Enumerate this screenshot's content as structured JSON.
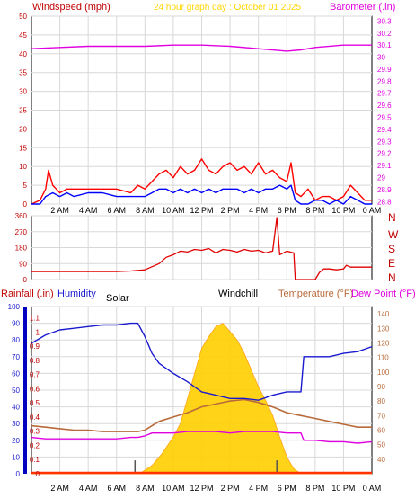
{
  "colors": {
    "background": "#ffffff",
    "plot_bg": "#ffffff",
    "frame": "#000000",
    "grid": "#d8d8d8",
    "wind_gust": "#ff0000",
    "wind_avg": "#0000ff",
    "barometer": "#e000e0",
    "direction": "#e00000",
    "humidity": "#1a1ad0",
    "temperature": "#b86a3a",
    "dew_point": "#e000e0",
    "solar": "#ffd000",
    "solar_edge": "#ff9900",
    "rain_bar": "#0000c0",
    "title": "#ffd400",
    "rain_bottom": "#ff3300"
  },
  "chart_data": [
    {
      "type": "line",
      "panel": "wind_barometer",
      "title": "24 hour graph day : October 01 2025",
      "left_label": "Windspeed (mph)",
      "right_label": "Barometer (.in)",
      "x_ticks": [
        "2 AM",
        "4 AM",
        "6 AM",
        "8 AM",
        "10 AM",
        "12 PM",
        "2 PM",
        "4 PM",
        "6 PM",
        "8 PM",
        "10 PM",
        "0 AM"
      ],
      "left_ticks": [
        "0",
        "5",
        "10",
        "15",
        "20",
        "25",
        "30",
        "35",
        "40",
        "45",
        "50"
      ],
      "ylim_left": [
        0,
        50
      ],
      "right_ticks": [
        "28.8",
        "28.9",
        "29",
        "29.1",
        "29.2",
        "29.3",
        "29.4",
        "29.5",
        "29.6",
        "29.7",
        "29.8",
        "29.9",
        "30",
        "30.1",
        "30.2",
        "30.3"
      ],
      "ylim_right": [
        28.78,
        30.34
      ],
      "series": [
        {
          "key": "gust",
          "x": [
            0,
            0.6,
            1,
            1.2,
            1.5,
            2,
            2.5,
            3,
            4,
            5,
            6,
            7,
            7.5,
            8,
            8.5,
            9,
            9.5,
            10,
            10.5,
            11,
            11.5,
            12,
            12.5,
            13,
            13.5,
            14,
            14.5,
            15,
            15.5,
            16,
            16.5,
            17,
            17.5,
            18,
            18.3,
            18.6,
            19,
            19.5,
            20,
            20.5,
            21,
            21.5,
            22,
            22.5,
            23,
            23.5,
            24
          ],
          "y": [
            0,
            1,
            4,
            9,
            5,
            3,
            4,
            4,
            4,
            4,
            4,
            3,
            5,
            4,
            6,
            8,
            9,
            7,
            10,
            8,
            9,
            12,
            9,
            8,
            10,
            11,
            9,
            10,
            8,
            11,
            8,
            9,
            7,
            6,
            11,
            3,
            2,
            4,
            1,
            2,
            2,
            1,
            2,
            5,
            3,
            1,
            1
          ]
        },
        {
          "key": "average",
          "x": [
            0,
            0.6,
            1,
            1.5,
            2,
            2.5,
            3,
            4,
            5,
            6,
            7,
            7.5,
            8,
            8.5,
            9,
            9.5,
            10,
            10.5,
            11,
            11.5,
            12,
            12.5,
            13,
            13.5,
            14,
            14.5,
            15,
            15.5,
            16,
            16.5,
            17,
            17.5,
            18,
            18.3,
            18.6,
            19,
            19.5,
            20,
            20.5,
            21,
            21.5,
            22,
            22.5,
            23,
            23.5,
            24
          ],
          "y": [
            0,
            0,
            2,
            3,
            2,
            3,
            2,
            3,
            3,
            2,
            2,
            2,
            2,
            3,
            4,
            4,
            3,
            4,
            3,
            4,
            3,
            4,
            3,
            4,
            4,
            4,
            3,
            4,
            3,
            4,
            4,
            5,
            4,
            5,
            1,
            0,
            0,
            1,
            1,
            0,
            1,
            0,
            2,
            1,
            0,
            0
          ]
        },
        {
          "key": "barometer",
          "x": [
            0,
            2,
            4,
            6,
            8,
            10,
            12,
            14,
            16,
            18,
            19,
            20,
            22,
            24
          ],
          "y": [
            30.07,
            30.08,
            30.09,
            30.09,
            30.09,
            30.1,
            30.1,
            30.09,
            30.07,
            30.05,
            30.06,
            30.08,
            30.1,
            30.1
          ]
        }
      ]
    },
    {
      "type": "line",
      "panel": "wind_direction",
      "right_labels": [
        "N",
        "W",
        "S",
        "E",
        "N"
      ],
      "left_ticks": [
        "0",
        "45",
        "90",
        "135",
        "180",
        "225",
        "270",
        "315",
        "360"
      ],
      "ylim": [
        0,
        360
      ],
      "series": [
        {
          "key": "direction",
          "x": [
            0,
            2,
            4,
            6,
            7,
            8,
            9,
            9.5,
            10,
            10.5,
            11,
            11.5,
            12,
            12.5,
            13,
            13.5,
            14,
            14.5,
            15,
            15.5,
            16,
            16.5,
            17,
            17.3,
            17.5,
            18,
            18.5,
            18.6,
            19,
            19.5,
            20,
            20.3,
            20.6,
            21,
            21.5,
            22,
            22.2,
            22.5,
            23,
            24
          ],
          "y": [
            45,
            45,
            45,
            45,
            48,
            55,
            90,
            125,
            140,
            160,
            155,
            170,
            165,
            175,
            150,
            170,
            165,
            155,
            170,
            160,
            165,
            150,
            160,
            350,
            140,
            160,
            150,
            0,
            0,
            0,
            0,
            40,
            60,
            60,
            55,
            60,
            80,
            70,
            70,
            70
          ]
        }
      ]
    },
    {
      "type": "line",
      "panel": "weather_main",
      "labels": {
        "rainfall": "Rainfall (.in)",
        "humidity": "Humidity",
        "solar": "Solar",
        "windchill": "Windchill",
        "temperature": "Temperature (°F)",
        "dew_point": "Dew Point (°F)"
      },
      "x_ticks": [
        "2 AM",
        "4 AM",
        "6 AM",
        "8 AM",
        "10 AM",
        "12 PM",
        "2 PM",
        "4 PM",
        "6 PM",
        "8 PM",
        "10 PM",
        "0 AM"
      ],
      "humidity_ticks": [
        "0",
        "10",
        "20",
        "30",
        "40",
        "50",
        "60",
        "70",
        "80",
        "90",
        "100"
      ],
      "ylim_humidity": [
        0,
        100
      ],
      "rain_ticks": [
        "0",
        "0.1",
        "0.2",
        "0.3",
        "0.4",
        "0.5",
        "0.6",
        "0.7",
        "0.8",
        "0.9",
        "1",
        "1.1"
      ],
      "ylim_rain": [
        0,
        1.18
      ],
      "temp_ticks": [
        "40",
        "50",
        "60",
        "70",
        "80",
        "90",
        "100",
        "110",
        "120",
        "130",
        "140"
      ],
      "ylim_temp": [
        30,
        145
      ],
      "rainfall": 0,
      "series": [
        {
          "key": "humidity",
          "x": [
            0,
            1,
            2,
            3,
            4,
            5,
            6,
            7,
            7.5,
            8,
            8.5,
            9,
            10,
            11,
            12,
            13,
            14,
            15,
            16,
            17,
            18,
            18.5,
            19,
            19.2,
            19.5,
            20,
            21,
            22,
            23,
            24
          ],
          "y": [
            78,
            83,
            86,
            87,
            88,
            89,
            89,
            90,
            90,
            82,
            72,
            66,
            60,
            55,
            49,
            47,
            45,
            45,
            44,
            47,
            49,
            49,
            49,
            70,
            70,
            70,
            70,
            72,
            73,
            76
          ]
        },
        {
          "key": "temperature",
          "x": [
            0,
            1,
            2,
            3,
            4,
            5,
            6,
            7,
            7.5,
            8,
            8.5,
            9,
            10,
            11,
            12,
            13,
            14,
            15,
            16,
            17,
            18,
            18.5,
            19,
            19.5,
            20,
            21,
            22,
            23,
            24
          ],
          "y": [
            63,
            62,
            61,
            60,
            60,
            59,
            59,
            59,
            59,
            60,
            63,
            66,
            69,
            72,
            76,
            78,
            80,
            81,
            79,
            76,
            72,
            71,
            70,
            69,
            68,
            66,
            64,
            62,
            62
          ]
        },
        {
          "key": "dew_point",
          "x": [
            0,
            1,
            2,
            3,
            4,
            5,
            6,
            7,
            7.5,
            8,
            8.5,
            9,
            10,
            11,
            12,
            13,
            14,
            15,
            16,
            17,
            18,
            18.5,
            19,
            19.2,
            19.5,
            20,
            21,
            22,
            23,
            24
          ],
          "y": [
            55,
            54,
            54,
            54,
            54,
            54,
            54,
            55,
            55,
            56,
            58,
            58,
            58,
            59,
            59,
            59,
            58,
            59,
            59,
            59,
            58,
            58,
            58,
            53,
            53,
            53,
            52,
            52,
            51,
            52
          ]
        },
        {
          "key": "solar",
          "x": [
            0,
            7.2,
            7.8,
            8.5,
            9.2,
            10,
            10.5,
            11,
            11.5,
            12,
            12.5,
            13,
            13.5,
            14,
            14.5,
            15,
            15.5,
            16,
            16.5,
            17,
            17.5,
            18,
            18.5,
            19,
            24
          ],
          "y": [
            0,
            0,
            1,
            5,
            12,
            22,
            30,
            45,
            60,
            75,
            82,
            88,
            90,
            85,
            80,
            72,
            62,
            52,
            44,
            35,
            22,
            10,
            3,
            0,
            0
          ]
        }
      ]
    }
  ]
}
